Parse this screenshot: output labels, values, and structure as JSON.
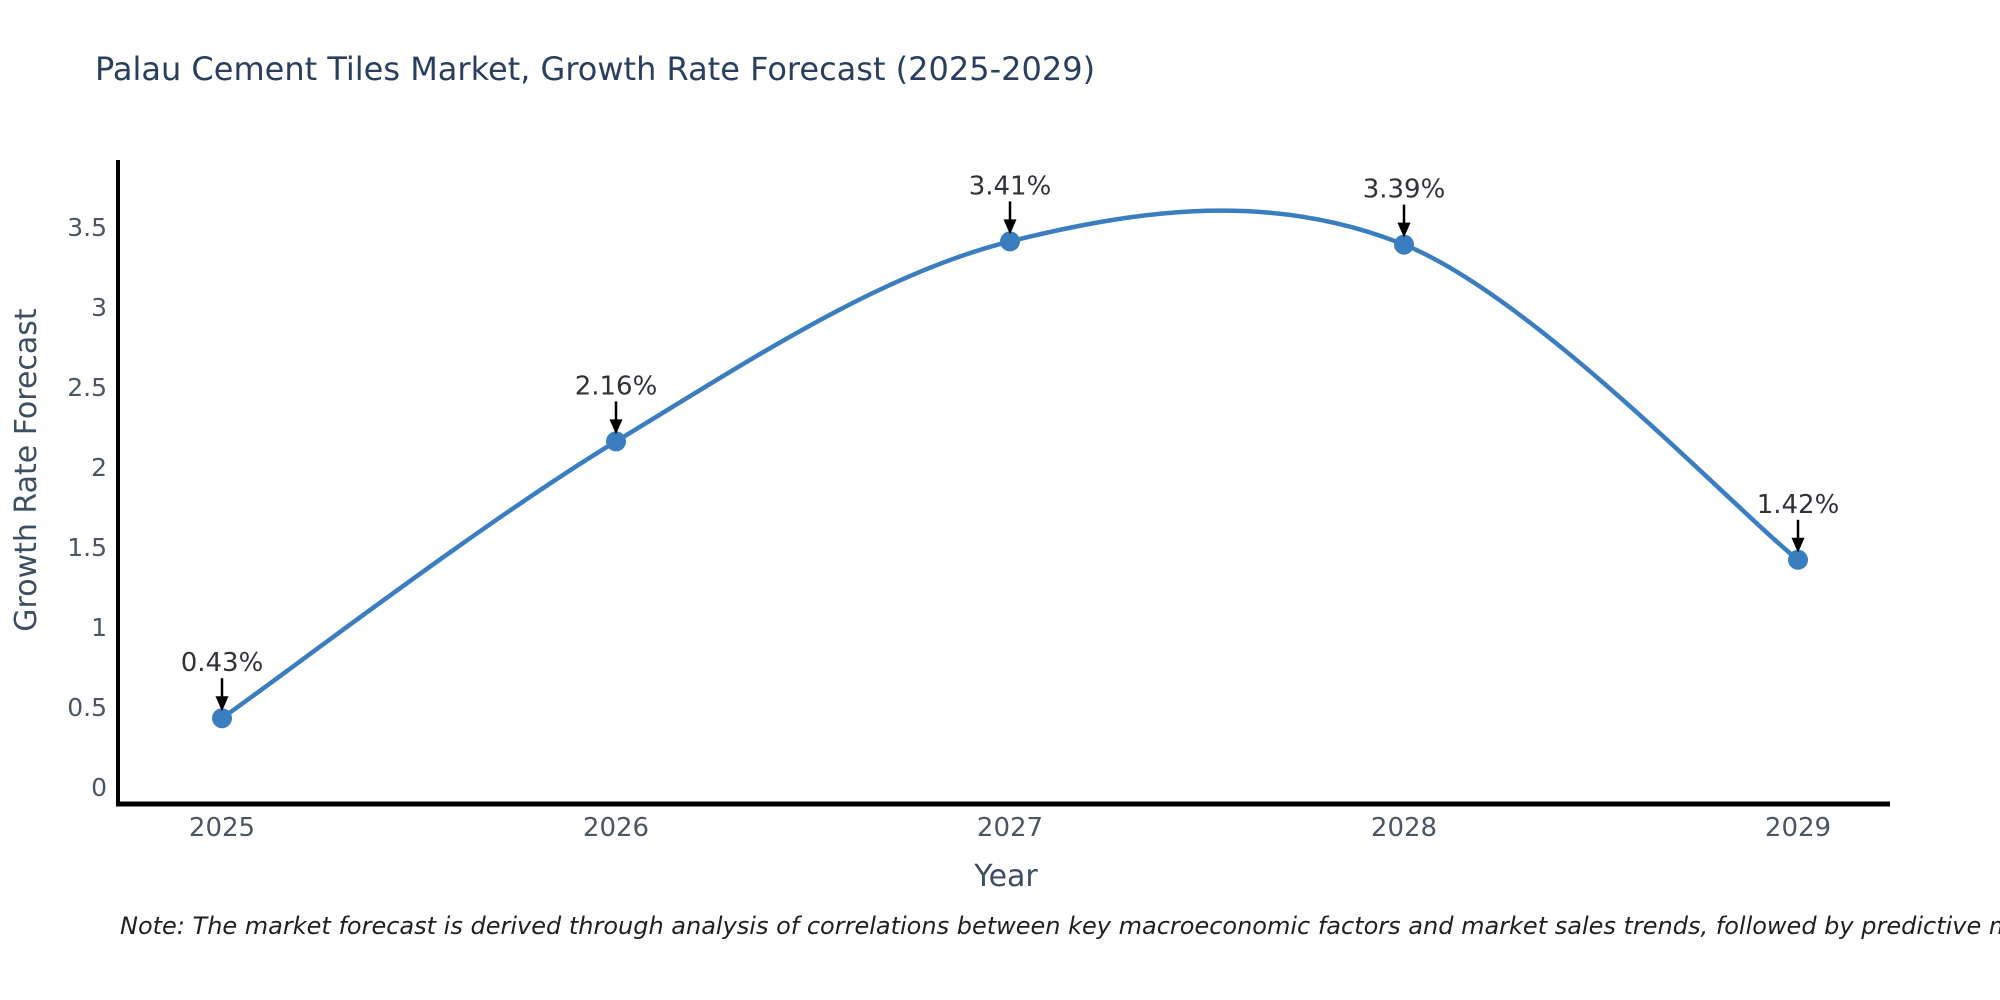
{
  "page": {
    "title": "Palau Cement Tiles Market, Growth Rate Forecast (2025-2029)",
    "note": "Note: The market forecast is derived through analysis of correlations between key macroeconomic factors and market sales trends, followed by predictive modeling to project future sales"
  },
  "chart_data": {
    "type": "line",
    "title": "Palau Cement Tiles Market, Growth Rate Forecast (2025-2029)",
    "categories": [
      "2025",
      "2026",
      "2027",
      "2028",
      "2029"
    ],
    "values": [
      0.43,
      2.16,
      3.41,
      3.39,
      1.42
    ],
    "point_labels": [
      "0.43%",
      "2.16%",
      "3.41%",
      "3.39%",
      "1.42%"
    ],
    "xlabel": "Year",
    "ylabel": "Growth Rate Forecast",
    "yticks": [
      0,
      0.5,
      1,
      1.5,
      2,
      2.5,
      3,
      3.5
    ],
    "ylim": [
      0,
      3.75
    ],
    "grid": false,
    "legend": false,
    "curve": "spline",
    "colors": {
      "line": "#3a7ebf",
      "marker": "#3a7ebf",
      "axis": "#000000",
      "tick_label": "#4c5662",
      "axis_title": "#3d4e63",
      "annotation_text": "#2f3338",
      "annotation_arrow": "#000000",
      "title": "#2a3f5f",
      "background": "#ffffff"
    }
  }
}
